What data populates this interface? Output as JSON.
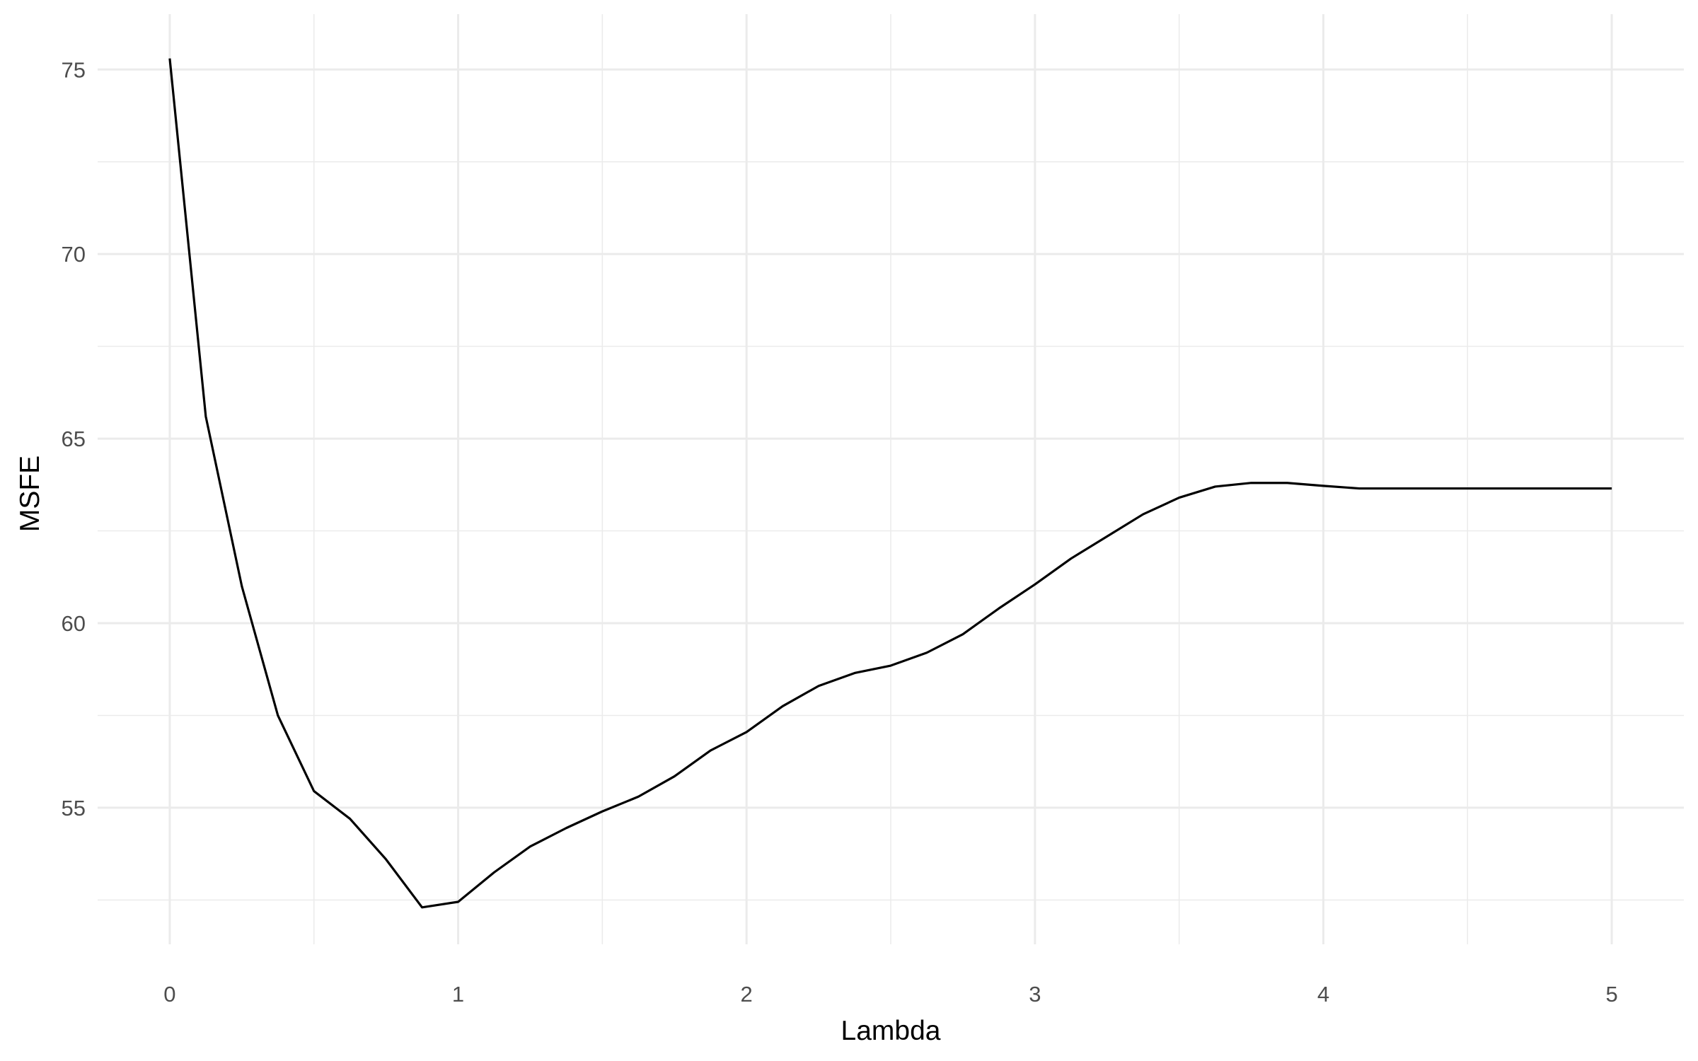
{
  "chart_data": {
    "type": "line",
    "xlabel": "Lambda",
    "ylabel": "MSFE",
    "xlim": [
      -0.25,
      5.25
    ],
    "ylim": [
      51.3,
      76.5
    ],
    "x_ticks": [
      0,
      1,
      2,
      3,
      4,
      5
    ],
    "y_ticks": [
      55,
      60,
      65,
      70,
      75
    ],
    "x_tick_labels": [
      "0",
      "1",
      "2",
      "3",
      "4",
      "5"
    ],
    "y_tick_labels": [
      "55",
      "60",
      "65",
      "70",
      "75"
    ],
    "grid": true,
    "legend": "none",
    "line_color": "#000000",
    "grid_color": "#ebebeb",
    "series": [
      {
        "x": [
          0,
          0.125,
          0.25,
          0.375,
          0.5,
          0.625,
          0.75,
          0.875,
          1.0,
          1.125,
          1.25,
          1.375,
          1.5,
          1.625,
          1.75,
          1.875,
          2.0,
          2.125,
          2.25,
          2.375,
          2.5,
          2.625,
          2.75,
          2.875,
          3.0,
          3.125,
          3.25,
          3.375,
          3.5,
          3.625,
          3.75,
          3.875,
          4.0,
          4.125,
          4.25,
          4.375,
          4.5,
          4.625,
          4.75,
          4.875,
          5.0
        ],
        "y": [
          75.3,
          65.6,
          61.0,
          57.5,
          55.45,
          54.7,
          53.6,
          52.3,
          52.45,
          53.25,
          53.95,
          54.45,
          54.9,
          55.3,
          55.85,
          56.55,
          57.05,
          57.75,
          58.3,
          58.65,
          58.85,
          59.2,
          59.7,
          60.4,
          61.05,
          61.75,
          62.35,
          62.95,
          63.4,
          63.7,
          63.8,
          63.8,
          63.72,
          63.65,
          63.65,
          63.65,
          63.65,
          63.65,
          63.65,
          63.65,
          63.65
        ]
      }
    ]
  }
}
